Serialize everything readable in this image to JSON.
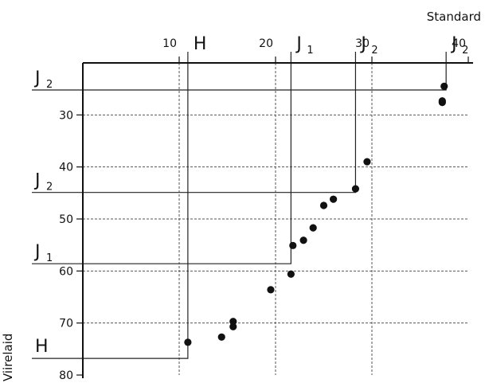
{
  "chart_data": {
    "type": "scatter",
    "xlabel": "Standard",
    "ylabel": "Viirelaid",
    "xlim": [
      0,
      40
    ],
    "ylim": [
      80,
      20
    ],
    "x_ticks": [
      "10",
      "20",
      "30",
      "40"
    ],
    "y_ticks": [
      "30",
      "40",
      "50",
      "60",
      "70",
      "80"
    ],
    "grid": true,
    "points": [
      {
        "x": 37.5,
        "y": 24.5
      },
      {
        "x": 37.3,
        "y": 27.3
      },
      {
        "x": 37.3,
        "y": 27.6
      },
      {
        "x": 29.5,
        "y": 39.0
      },
      {
        "x": 28.3,
        "y": 44.2
      },
      {
        "x": 26.0,
        "y": 46.2
      },
      {
        "x": 25.0,
        "y": 47.4
      },
      {
        "x": 23.9,
        "y": 51.7
      },
      {
        "x": 22.9,
        "y": 54.1
      },
      {
        "x": 21.8,
        "y": 55.1
      },
      {
        "x": 21.6,
        "y": 60.6
      },
      {
        "x": 19.5,
        "y": 63.6
      },
      {
        "x": 15.6,
        "y": 69.7
      },
      {
        "x": 15.6,
        "y": 70.7
      },
      {
        "x": 14.4,
        "y": 72.7
      },
      {
        "x": 10.9,
        "y": 73.7
      }
    ],
    "markers": [
      {
        "label": "H",
        "sub": "",
        "x": 10.9,
        "y": 76.8
      },
      {
        "label": "J",
        "sub": "1",
        "x": 21.6,
        "y": 58.6
      },
      {
        "label": "J",
        "sub": "2",
        "x": 28.3,
        "y": 44.9
      },
      {
        "label": "J",
        "sub": "2",
        "x": 37.7,
        "y": 25.2
      }
    ]
  }
}
